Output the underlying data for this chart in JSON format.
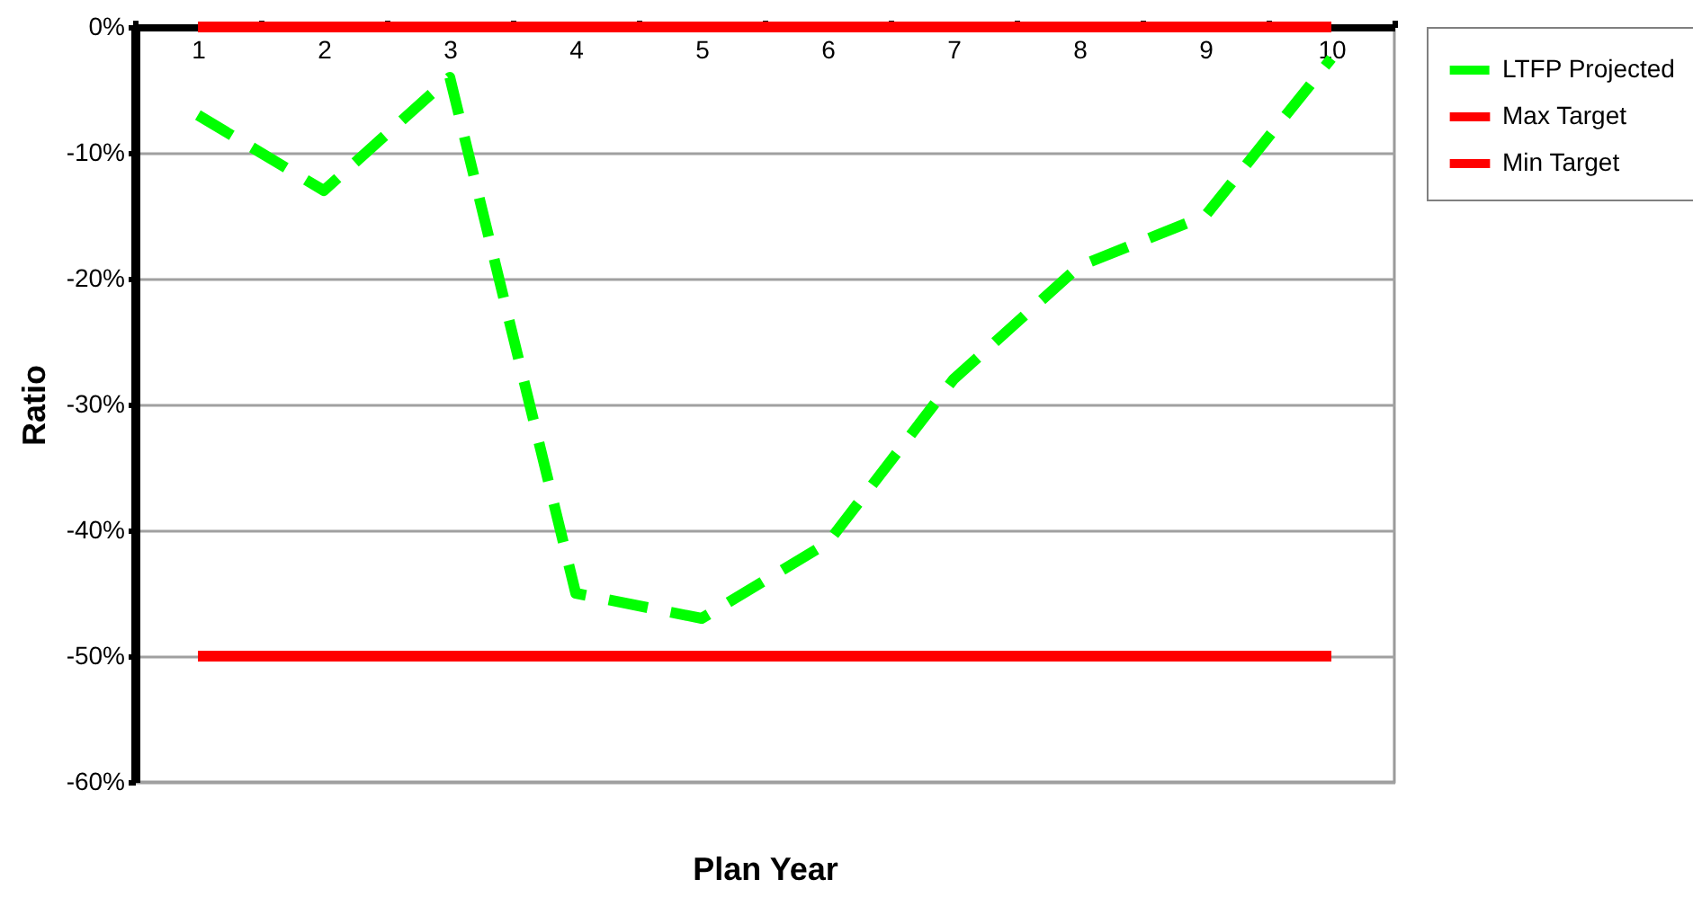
{
  "chart_data": {
    "type": "line",
    "xlabel": "Plan Year",
    "ylabel": "Ratio",
    "categories": [
      "1",
      "2",
      "3",
      "4",
      "5",
      "6",
      "7",
      "8",
      "9",
      "10"
    ],
    "series": [
      {
        "name": "LTFP Projected",
        "color": "#00ff00",
        "line_style": "dashed",
        "values": [
          -7,
          -13,
          -4,
          -45,
          -47,
          -41,
          -28,
          -19,
          -15,
          -2.5
        ]
      },
      {
        "name": "Max Target",
        "color": "#ff0000",
        "line_style": "solid",
        "values": [
          0,
          0,
          0,
          0,
          0,
          0,
          0,
          0,
          0,
          0
        ]
      },
      {
        "name": "Min Target",
        "color": "#ff0000",
        "line_style": "solid",
        "values": [
          -50,
          -50,
          -50,
          -50,
          -50,
          -50,
          -50,
          -50,
          -50,
          -50
        ]
      }
    ],
    "ylim": [
      -60,
      0
    ],
    "yticks": [
      {
        "value": 0,
        "label": "0%"
      },
      {
        "value": -10,
        "label": "-10%"
      },
      {
        "value": -20,
        "label": "-20%"
      },
      {
        "value": -30,
        "label": "-30%"
      },
      {
        "value": -40,
        "label": "-40%"
      },
      {
        "value": -50,
        "label": "-50%"
      },
      {
        "value": -60,
        "label": "-60%"
      }
    ],
    "grid": "y",
    "legend": "right"
  }
}
